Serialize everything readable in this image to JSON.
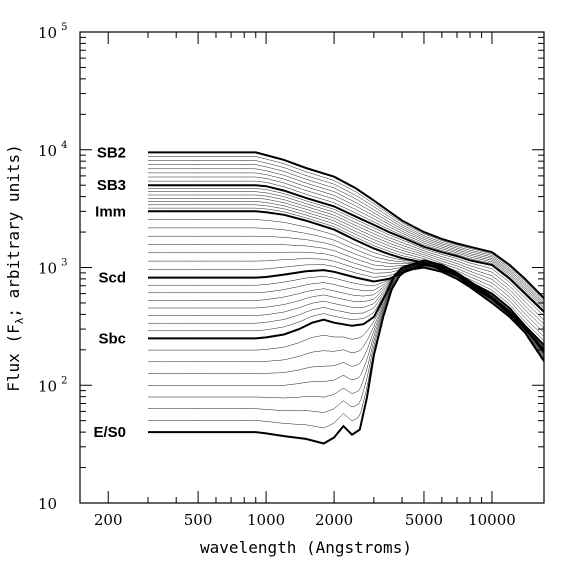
{
  "chart_data": {
    "type": "line",
    "xlabel": "wavelength (Angstroms)",
    "ylabel_prefix": "Flux (F",
    "ylabel_subscript": "λ",
    "ylabel_suffix": "; arbitrary units)",
    "xscale": "log",
    "yscale": "log",
    "xlim": [
      150,
      17000
    ],
    "ylim": [
      10,
      100000
    ],
    "x_ticks": [
      {
        "value": 200,
        "label": "200"
      },
      {
        "value": 500,
        "label": "500"
      },
      {
        "value": 1000,
        "label": "1000"
      },
      {
        "value": 2000,
        "label": "2000"
      },
      {
        "value": 5000,
        "label": "5000"
      },
      {
        "value": 10000,
        "label": "10000"
      }
    ],
    "y_ticks": [
      {
        "value": 10,
        "base": "10",
        "exp": ""
      },
      {
        "value": 100,
        "base": "10",
        "exp": "2"
      },
      {
        "value": 1000,
        "base": "10",
        "exp": "3"
      },
      {
        "value": 10000,
        "base": "10",
        "exp": "4"
      },
      {
        "value": 100000,
        "base": "10",
        "exp": "5"
      }
    ],
    "series": [
      {
        "name": "SB2",
        "bold": true,
        "points": [
          [
            300,
            9500
          ],
          [
            900,
            9500
          ],
          [
            1000,
            9000
          ],
          [
            1200,
            8200
          ],
          [
            1500,
            7000
          ],
          [
            2000,
            5900
          ],
          [
            2500,
            4700
          ],
          [
            3000,
            3700
          ],
          [
            3500,
            3000
          ],
          [
            4000,
            2500
          ],
          [
            5000,
            2000
          ],
          [
            6000,
            1750
          ],
          [
            7000,
            1600
          ],
          [
            8000,
            1500
          ],
          [
            10000,
            1350
          ],
          [
            12000,
            1050
          ],
          [
            14000,
            800
          ],
          [
            17000,
            550
          ]
        ]
      },
      {
        "name": "SB3",
        "bold": true,
        "points": [
          [
            300,
            5000
          ],
          [
            900,
            5000
          ],
          [
            1000,
            4900
          ],
          [
            1200,
            4500
          ],
          [
            1500,
            3900
          ],
          [
            2000,
            3300
          ],
          [
            2500,
            2700
          ],
          [
            3000,
            2300
          ],
          [
            3500,
            2000
          ],
          [
            4000,
            1800
          ],
          [
            5000,
            1500
          ],
          [
            6000,
            1350
          ],
          [
            7000,
            1250
          ],
          [
            8000,
            1150
          ],
          [
            10000,
            1050
          ],
          [
            12000,
            800
          ],
          [
            14000,
            600
          ],
          [
            17000,
            420
          ]
        ]
      },
      {
        "name": "Imm",
        "bold": true,
        "points": [
          [
            300,
            3000
          ],
          [
            900,
            3000
          ],
          [
            1000,
            2950
          ],
          [
            1200,
            2800
          ],
          [
            1500,
            2500
          ],
          [
            2000,
            2100
          ],
          [
            2500,
            1700
          ],
          [
            3000,
            1450
          ],
          [
            3500,
            1300
          ],
          [
            4000,
            1200
          ],
          [
            5000,
            1100
          ],
          [
            6000,
            950
          ],
          [
            7000,
            850
          ],
          [
            8000,
            750
          ],
          [
            10000,
            600
          ],
          [
            12000,
            450
          ],
          [
            14000,
            320
          ],
          [
            17000,
            220
          ]
        ]
      },
      {
        "name": "Scd",
        "bold": true,
        "points": [
          [
            300,
            820
          ],
          [
            900,
            820
          ],
          [
            1000,
            830
          ],
          [
            1200,
            870
          ],
          [
            1500,
            930
          ],
          [
            1800,
            950
          ],
          [
            2000,
            920
          ],
          [
            2500,
            820
          ],
          [
            3000,
            760
          ],
          [
            3500,
            800
          ],
          [
            4000,
            900
          ],
          [
            5000,
            1050
          ],
          [
            6000,
            1000
          ],
          [
            7000,
            850
          ],
          [
            8000,
            700
          ],
          [
            10000,
            540
          ],
          [
            12000,
            400
          ],
          [
            14000,
            300
          ],
          [
            17000,
            200
          ]
        ]
      },
      {
        "name": "Sbc",
        "bold": true,
        "points": [
          [
            300,
            250
          ],
          [
            900,
            250
          ],
          [
            1000,
            255
          ],
          [
            1200,
            270
          ],
          [
            1400,
            300
          ],
          [
            1600,
            340
          ],
          [
            1800,
            360
          ],
          [
            2000,
            340
          ],
          [
            2400,
            320
          ],
          [
            2700,
            330
          ],
          [
            3000,
            380
          ],
          [
            3400,
            600
          ],
          [
            3700,
            850
          ],
          [
            4000,
            1000
          ],
          [
            5000,
            1150
          ],
          [
            6000,
            1050
          ],
          [
            7000,
            900
          ],
          [
            8000,
            760
          ],
          [
            10000,
            560
          ],
          [
            12000,
            420
          ],
          [
            14000,
            310
          ],
          [
            17000,
            190
          ]
        ]
      },
      {
        "name": "E/S0",
        "bold": true,
        "points": [
          [
            300,
            40
          ],
          [
            900,
            40
          ],
          [
            1000,
            39
          ],
          [
            1200,
            37
          ],
          [
            1500,
            35
          ],
          [
            1800,
            32
          ],
          [
            2000,
            36
          ],
          [
            2200,
            45
          ],
          [
            2400,
            38
          ],
          [
            2600,
            42
          ],
          [
            2800,
            80
          ],
          [
            3000,
            180
          ],
          [
            3300,
            380
          ],
          [
            3600,
            650
          ],
          [
            3900,
            850
          ],
          [
            4200,
            950
          ],
          [
            5000,
            1000
          ],
          [
            6000,
            920
          ],
          [
            7000,
            800
          ],
          [
            8000,
            680
          ],
          [
            10000,
            500
          ],
          [
            12000,
            380
          ],
          [
            14000,
            280
          ],
          [
            17000,
            160
          ]
        ]
      }
    ]
  }
}
